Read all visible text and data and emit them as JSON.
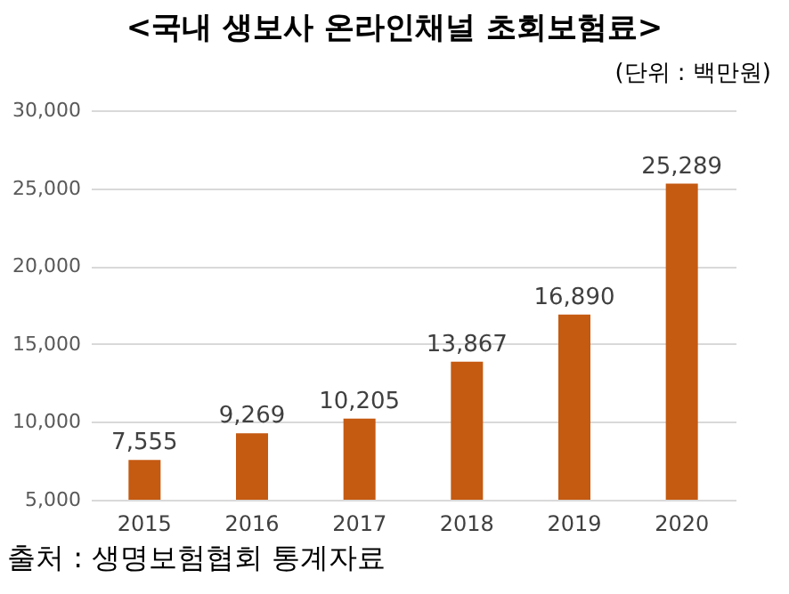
{
  "chart_data": {
    "type": "bar",
    "title": "<국내 생보사 온라인채널 초회보험료>",
    "subtitle": "(단위 : 백만원)",
    "categories": [
      "2015",
      "2016",
      "2017",
      "2018",
      "2019",
      "2020"
    ],
    "values": [
      7555,
      9269,
      10205,
      13867,
      16890,
      25289
    ],
    "color": "#c55a11",
    "ylim": [
      5000,
      30000
    ],
    "yticks": [
      {
        "value": 5000,
        "label": "5,000"
      },
      {
        "value": 10000,
        "label": "10,000"
      },
      {
        "value": 15000,
        "label": "15,000"
      },
      {
        "value": 20000,
        "label": "20,000"
      },
      {
        "value": 25000,
        "label": "25,000"
      },
      {
        "value": 30000,
        "label": "30,000"
      }
    ],
    "grid": "y",
    "data_labels": true,
    "value_labels": [
      "7,555",
      "9,269",
      "10,205",
      "13,867",
      "16,890",
      "25,289"
    ],
    "annotations": [
      "출처 : 생명보험협회 통계자료"
    ]
  }
}
